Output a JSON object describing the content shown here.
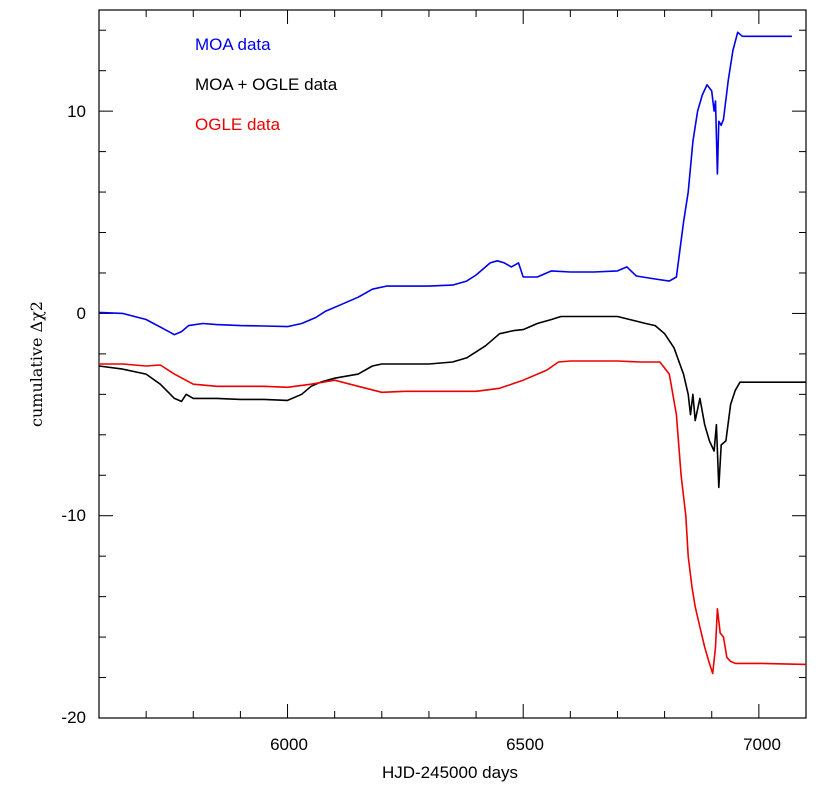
{
  "chart_data": {
    "type": "line",
    "xlabel": "HJD-245000 days",
    "ylabel": "cumulative Δχ2",
    "xlim": [
      5600,
      7100
    ],
    "ylim": [
      -20,
      15
    ],
    "xticks_major": [
      6000,
      6500,
      7000
    ],
    "xticks_minor": [
      5700,
      5800,
      5900,
      6100,
      6200,
      6300,
      6400,
      6600,
      6700,
      6800,
      6900
    ],
    "yticks_major": [
      10,
      0,
      -10,
      -20
    ],
    "yticks_minor": [
      14,
      12,
      8,
      6,
      4,
      2,
      -2,
      -4,
      -6,
      -8,
      -12,
      -14,
      -16,
      -18
    ],
    "xtick_labels": [
      "6000",
      "6500",
      "7000"
    ],
    "ytick_labels": [
      "10",
      "0",
      "-10",
      "-20"
    ],
    "legend_position": "top-left",
    "series": [
      {
        "name": "MOA data",
        "color": "#0000ee",
        "points": [
          [
            5600,
            0.05
          ],
          [
            5650,
            0.0
          ],
          [
            5700,
            -0.3
          ],
          [
            5740,
            -0.8
          ],
          [
            5760,
            -1.05
          ],
          [
            5775,
            -0.9
          ],
          [
            5790,
            -0.6
          ],
          [
            5820,
            -0.5
          ],
          [
            5850,
            -0.55
          ],
          [
            5900,
            -0.6
          ],
          [
            5950,
            -0.62
          ],
          [
            6000,
            -0.65
          ],
          [
            6030,
            -0.5
          ],
          [
            6060,
            -0.2
          ],
          [
            6080,
            0.1
          ],
          [
            6110,
            0.4
          ],
          [
            6150,
            0.8
          ],
          [
            6180,
            1.2
          ],
          [
            6210,
            1.35
          ],
          [
            6250,
            1.35
          ],
          [
            6300,
            1.35
          ],
          [
            6350,
            1.4
          ],
          [
            6380,
            1.6
          ],
          [
            6400,
            1.9
          ],
          [
            6430,
            2.5
          ],
          [
            6445,
            2.6
          ],
          [
            6460,
            2.5
          ],
          [
            6475,
            2.3
          ],
          [
            6490,
            2.5
          ],
          [
            6500,
            1.8
          ],
          [
            6530,
            1.8
          ],
          [
            6560,
            2.1
          ],
          [
            6600,
            2.05
          ],
          [
            6650,
            2.05
          ],
          [
            6700,
            2.1
          ],
          [
            6720,
            2.3
          ],
          [
            6740,
            1.85
          ],
          [
            6780,
            1.7
          ],
          [
            6810,
            1.6
          ],
          [
            6825,
            1.8
          ],
          [
            6840,
            4.5
          ],
          [
            6850,
            6.0
          ],
          [
            6860,
            8.5
          ],
          [
            6870,
            10.0
          ],
          [
            6880,
            10.8
          ],
          [
            6890,
            11.3
          ],
          [
            6900,
            11.0
          ],
          [
            6905,
            10.0
          ],
          [
            6908,
            10.5
          ],
          [
            6912,
            6.9
          ],
          [
            6915,
            9.5
          ],
          [
            6920,
            9.3
          ],
          [
            6925,
            9.6
          ],
          [
            6935,
            11.5
          ],
          [
            6945,
            13.0
          ],
          [
            6955,
            13.9
          ],
          [
            6965,
            13.7
          ],
          [
            7000,
            13.7
          ],
          [
            7070,
            13.7
          ]
        ]
      },
      {
        "name": "MOA + OGLE data",
        "color": "#000000",
        "points": [
          [
            5600,
            -2.6
          ],
          [
            5650,
            -2.75
          ],
          [
            5700,
            -3.0
          ],
          [
            5730,
            -3.5
          ],
          [
            5760,
            -4.2
          ],
          [
            5775,
            -4.35
          ],
          [
            5785,
            -4.0
          ],
          [
            5800,
            -4.2
          ],
          [
            5850,
            -4.2
          ],
          [
            5900,
            -4.25
          ],
          [
            5950,
            -4.25
          ],
          [
            6000,
            -4.3
          ],
          [
            6030,
            -4.0
          ],
          [
            6050,
            -3.6
          ],
          [
            6070,
            -3.4
          ],
          [
            6100,
            -3.2
          ],
          [
            6150,
            -3.0
          ],
          [
            6180,
            -2.6
          ],
          [
            6200,
            -2.5
          ],
          [
            6300,
            -2.5
          ],
          [
            6350,
            -2.4
          ],
          [
            6380,
            -2.2
          ],
          [
            6420,
            -1.6
          ],
          [
            6450,
            -1.0
          ],
          [
            6480,
            -0.85
          ],
          [
            6500,
            -0.8
          ],
          [
            6530,
            -0.5
          ],
          [
            6560,
            -0.3
          ],
          [
            6580,
            -0.15
          ],
          [
            6650,
            -0.15
          ],
          [
            6700,
            -0.15
          ],
          [
            6760,
            -0.5
          ],
          [
            6780,
            -0.6
          ],
          [
            6800,
            -1.0
          ],
          [
            6820,
            -1.7
          ],
          [
            6840,
            -3.0
          ],
          [
            6850,
            -4.0
          ],
          [
            6855,
            -5.0
          ],
          [
            6860,
            -4.0
          ],
          [
            6865,
            -5.3
          ],
          [
            6875,
            -4.2
          ],
          [
            6885,
            -5.5
          ],
          [
            6895,
            -6.3
          ],
          [
            6905,
            -6.8
          ],
          [
            6910,
            -5.5
          ],
          [
            6915,
            -8.6
          ],
          [
            6920,
            -6.5
          ],
          [
            6930,
            -6.3
          ],
          [
            6940,
            -4.5
          ],
          [
            6950,
            -3.8
          ],
          [
            6960,
            -3.4
          ],
          [
            7000,
            -3.4
          ],
          [
            7100,
            -3.4
          ]
        ]
      },
      {
        "name": "OGLE data",
        "color": "#ee0000",
        "points": [
          [
            5600,
            -2.5
          ],
          [
            5650,
            -2.5
          ],
          [
            5700,
            -2.6
          ],
          [
            5730,
            -2.55
          ],
          [
            5760,
            -3.0
          ],
          [
            5800,
            -3.5
          ],
          [
            5850,
            -3.6
          ],
          [
            5900,
            -3.6
          ],
          [
            5950,
            -3.6
          ],
          [
            6000,
            -3.65
          ],
          [
            6050,
            -3.5
          ],
          [
            6100,
            -3.3
          ],
          [
            6150,
            -3.6
          ],
          [
            6200,
            -3.9
          ],
          [
            6250,
            -3.85
          ],
          [
            6300,
            -3.85
          ],
          [
            6350,
            -3.85
          ],
          [
            6400,
            -3.85
          ],
          [
            6450,
            -3.7
          ],
          [
            6500,
            -3.3
          ],
          [
            6550,
            -2.8
          ],
          [
            6575,
            -2.4
          ],
          [
            6600,
            -2.35
          ],
          [
            6650,
            -2.35
          ],
          [
            6700,
            -2.35
          ],
          [
            6750,
            -2.4
          ],
          [
            6790,
            -2.4
          ],
          [
            6810,
            -3.0
          ],
          [
            6825,
            -5.0
          ],
          [
            6835,
            -8.0
          ],
          [
            6845,
            -10.0
          ],
          [
            6850,
            -12.0
          ],
          [
            6858,
            -13.5
          ],
          [
            6865,
            -14.5
          ],
          [
            6875,
            -15.5
          ],
          [
            6885,
            -16.5
          ],
          [
            6895,
            -17.3
          ],
          [
            6902,
            -17.8
          ],
          [
            6908,
            -16.5
          ],
          [
            6912,
            -14.6
          ],
          [
            6918,
            -15.8
          ],
          [
            6925,
            -16.0
          ],
          [
            6932,
            -17.0
          ],
          [
            6940,
            -17.2
          ],
          [
            6950,
            -17.3
          ],
          [
            7000,
            -17.3
          ],
          [
            7100,
            -17.35
          ]
        ]
      }
    ]
  }
}
